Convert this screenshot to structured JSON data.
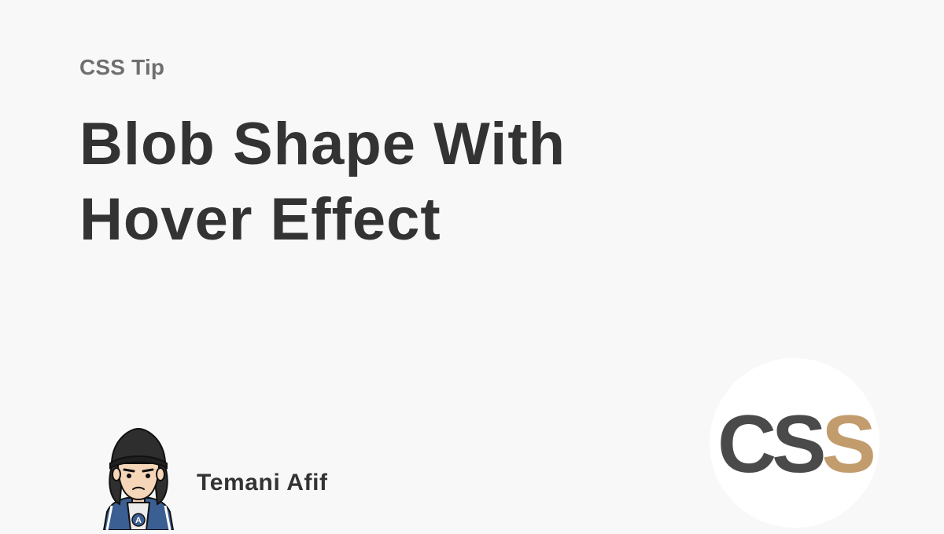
{
  "kicker": "CSS Tip",
  "title": {
    "line1": "Blob Shape With",
    "line2": "Hover Effect"
  },
  "author": {
    "name": "Temani Afif",
    "avatar_badge": "A"
  },
  "logo": {
    "part1": "CS",
    "part2": "S"
  },
  "colors": {
    "background": "#f8f8f8",
    "text_dark": "#333333",
    "text_muted": "#6f6f6f",
    "logo_dark": "#4a4a4a",
    "logo_accent": "#c29c6d",
    "logo_bg": "#ffffff"
  }
}
